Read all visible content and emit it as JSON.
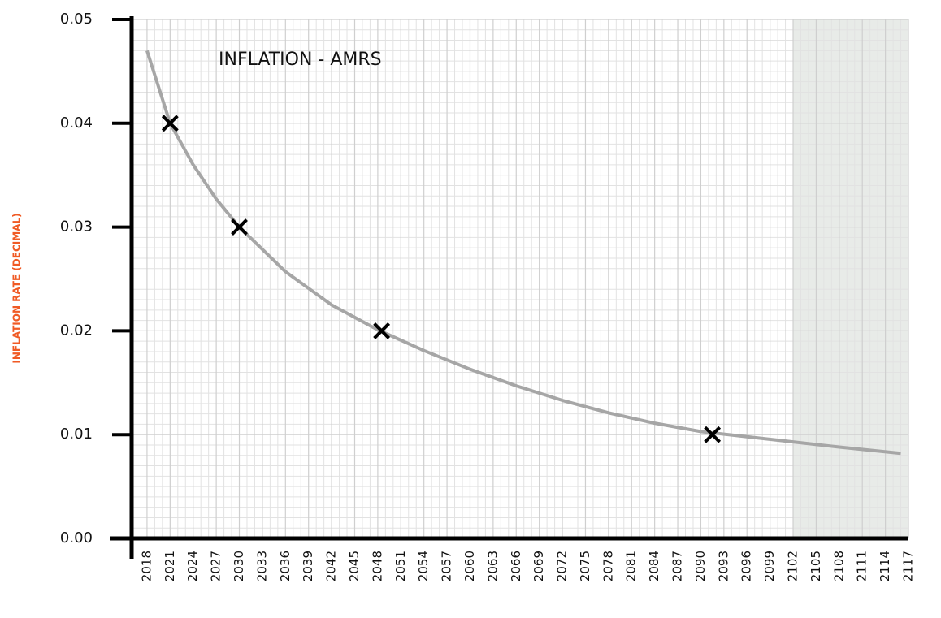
{
  "chart_data": {
    "type": "line",
    "title": "INFLATION - AMRS",
    "y_label": "INFLATION RATE (DECIMAL)",
    "xlim": [
      2016,
      2117
    ],
    "ylim": [
      0,
      0.05
    ],
    "xticks": [
      2018,
      2021,
      2024,
      2027,
      2030,
      2033,
      2036,
      2039,
      2042,
      2045,
      2048,
      2051,
      2054,
      2057,
      2060,
      2063,
      2066,
      2069,
      2072,
      2075,
      2078,
      2081,
      2084,
      2087,
      2090,
      2093,
      2096,
      2099,
      2102,
      2105,
      2108,
      2111,
      2114,
      2117
    ],
    "yticks": [
      {
        "value": 0,
        "label": "0.00"
      },
      0.01,
      0.02,
      0.03,
      0.04,
      0.05
    ],
    "grid": true,
    "shaded_x": [
      2102,
      2117
    ],
    "shade_color": "#e8ebe8",
    "series": [
      {
        "style": "line",
        "color": "#a6a6a6",
        "x": [
          2018,
          2021,
          2024,
          2027,
          2030,
          2036,
          2042,
          2048,
          2054,
          2060,
          2066,
          2072,
          2078,
          2084,
          2090,
          2096,
          2102,
          2108,
          2116
        ],
        "values": [
          0.047,
          0.04,
          0.036,
          0.0327,
          0.03,
          0.0257,
          0.0225,
          0.0201,
          0.0181,
          0.0163,
          0.0147,
          0.0133,
          0.0121,
          0.0111,
          0.0103,
          0.0098,
          0.0093,
          0.0088,
          0.0082
        ]
      },
      {
        "style": "cross",
        "color": "#000000",
        "x": [
          2021,
          2030,
          2048.5,
          2091.5
        ],
        "values": [
          0.04,
          0.03,
          0.02,
          0.01
        ]
      }
    ]
  }
}
